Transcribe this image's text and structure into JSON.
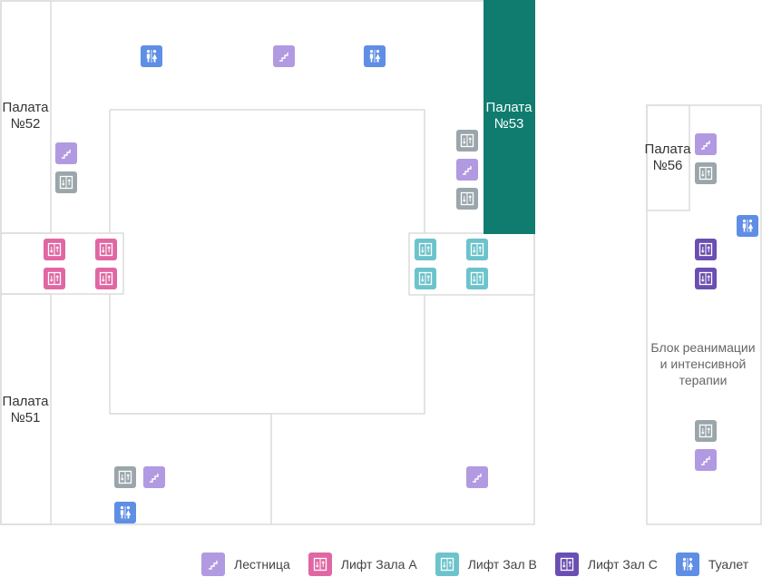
{
  "colors": {
    "wall": "#dcdcdc",
    "ward53_fill": "#0f7c6f",
    "stairs": "#b19ae1",
    "lift_a": "#e067a3",
    "lift_b": "#6cc3cc",
    "lift_c": "#6a4fb3",
    "toilet": "#5f8ee5",
    "lift_grey": "#9aa6ab"
  },
  "rooms": [
    {
      "id": "ward-52",
      "label": "Палата\n№52"
    },
    {
      "id": "ward-53",
      "label": "Палата\n№53"
    },
    {
      "id": "ward-51",
      "label": "Палата\n№51"
    },
    {
      "id": "ward-56",
      "label": "Палата\n№56"
    }
  ],
  "zones": [
    {
      "id": "icu",
      "label": "Блок реанимации\nи интенсивной\nтерапии"
    }
  ],
  "markers": [
    {
      "kind": "toilet",
      "icon": "toilet-icon"
    },
    {
      "kind": "stairs",
      "icon": "stairs-icon"
    },
    {
      "kind": "toilet",
      "icon": "toilet-icon"
    },
    {
      "kind": "stairs",
      "icon": "stairs-icon"
    },
    {
      "kind": "lift_grey",
      "icon": "elevator-icon"
    },
    {
      "kind": "lift_grey",
      "icon": "elevator-icon"
    },
    {
      "kind": "stairs",
      "icon": "stairs-icon"
    },
    {
      "kind": "lift_grey",
      "icon": "elevator-icon"
    },
    {
      "kind": "lift_a",
      "icon": "elevator-icon"
    },
    {
      "kind": "lift_a",
      "icon": "elevator-icon"
    },
    {
      "kind": "lift_a",
      "icon": "elevator-icon"
    },
    {
      "kind": "lift_a",
      "icon": "elevator-icon"
    },
    {
      "kind": "lift_b",
      "icon": "elevator-icon"
    },
    {
      "kind": "lift_b",
      "icon": "elevator-icon"
    },
    {
      "kind": "lift_b",
      "icon": "elevator-icon"
    },
    {
      "kind": "lift_b",
      "icon": "elevator-icon"
    },
    {
      "kind": "stairs",
      "icon": "stairs-icon"
    },
    {
      "kind": "lift_grey",
      "icon": "elevator-icon"
    },
    {
      "kind": "toilet",
      "icon": "toilet-icon"
    },
    {
      "kind": "lift_c",
      "icon": "elevator-icon"
    },
    {
      "kind": "lift_c",
      "icon": "elevator-icon"
    },
    {
      "kind": "lift_grey",
      "icon": "elevator-icon"
    },
    {
      "kind": "stairs",
      "icon": "stairs-icon"
    },
    {
      "kind": "lift_grey",
      "icon": "elevator-icon"
    },
    {
      "kind": "stairs",
      "icon": "stairs-icon"
    },
    {
      "kind": "toilet",
      "icon": "toilet-icon"
    },
    {
      "kind": "stairs",
      "icon": "stairs-icon"
    }
  ],
  "legend": [
    {
      "kind": "stairs",
      "icon": "stairs-icon",
      "label": "Лестница"
    },
    {
      "kind": "lift_a",
      "icon": "elevator-icon",
      "label": "Лифт Зала А"
    },
    {
      "kind": "lift_b",
      "icon": "elevator-icon",
      "label": "Лифт Зал В"
    },
    {
      "kind": "lift_c",
      "icon": "elevator-icon",
      "label": "Лифт Зал С"
    },
    {
      "kind": "toilet",
      "icon": "toilet-icon",
      "label": "Туалет"
    }
  ]
}
